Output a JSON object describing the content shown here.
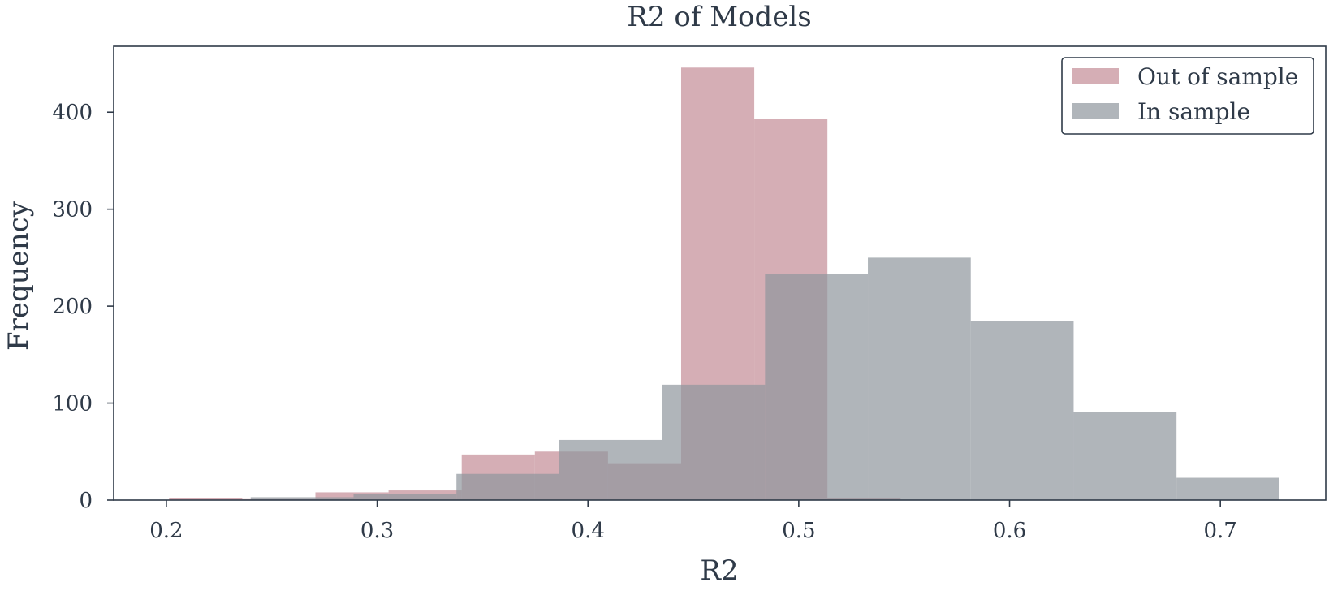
{
  "chart_data": {
    "type": "histogram",
    "title": "R2 of Models",
    "xlabel": "R2",
    "ylabel": "Frequency",
    "xlim": [
      0.175,
      0.75
    ],
    "ylim": [
      0,
      468
    ],
    "xticks": [
      0.2,
      0.3,
      0.4,
      0.5,
      0.6,
      0.7
    ],
    "xtick_labels": [
      "0.2",
      "0.3",
      "0.4",
      "0.5",
      "0.6",
      "0.7"
    ],
    "yticks": [
      0,
      100,
      200,
      300,
      400
    ],
    "ytick_labels": [
      "0",
      "100",
      "200",
      "300",
      "400"
    ],
    "grid": false,
    "legend_position": "top-right",
    "series": [
      {
        "name": "Out of sample",
        "color": "#c38b95",
        "opacity": 0.7,
        "bin_edges": [
          0.2013,
          0.236,
          0.2707,
          0.3054,
          0.3401,
          0.3748,
          0.4095,
          0.4442,
          0.4789,
          0.5136,
          0.5483
        ],
        "counts": [
          2,
          1,
          8,
          10,
          47,
          50,
          38,
          446,
          393,
          2
        ]
      },
      {
        "name": "In sample",
        "color": "#8e959c",
        "opacity": 0.7,
        "bin_edges": [
          0.24,
          0.2888,
          0.3376,
          0.3864,
          0.4352,
          0.484,
          0.5328,
          0.5816,
          0.6304,
          0.6792,
          0.728
        ],
        "counts": [
          3,
          6,
          27,
          62,
          119,
          233,
          250,
          185,
          91,
          23
        ]
      }
    ]
  }
}
